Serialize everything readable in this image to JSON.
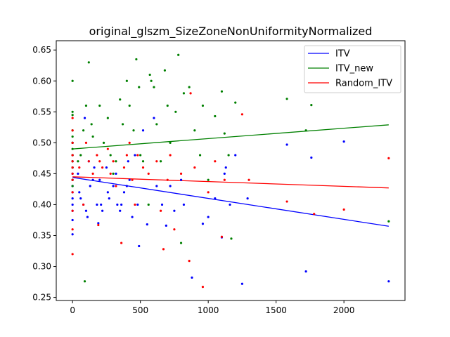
{
  "chart_data": {
    "type": "scatter",
    "title": "original_glszm_SizeZoneNonUniformityNormalized",
    "xlabel": "",
    "ylabel": "",
    "xlim": [
      -120,
      2450
    ],
    "ylim": [
      0.245,
      0.665
    ],
    "x_ticks": [
      0,
      500,
      1000,
      1500,
      2000
    ],
    "x_tick_labels": [
      "0",
      "500",
      "1000",
      "1500",
      "2000"
    ],
    "y_ticks": [
      0.25,
      0.3,
      0.35,
      0.4,
      0.45,
      0.5,
      0.55,
      0.6,
      0.65
    ],
    "y_tick_labels": [
      "0.25",
      "0.30",
      "0.35",
      "0.40",
      "0.45",
      "0.50",
      "0.55",
      "0.60",
      "0.65"
    ],
    "grid": false,
    "legend_position": "top-right",
    "series": [
      {
        "name": "ITV",
        "color": "#0000ff",
        "points": [
          [
            0,
            0.352
          ],
          [
            0,
            0.375
          ],
          [
            0,
            0.39
          ],
          [
            0,
            0.4
          ],
          [
            0,
            0.41
          ],
          [
            0,
            0.42
          ],
          [
            0,
            0.43
          ],
          [
            0,
            0.44
          ],
          [
            0,
            0.45
          ],
          [
            0,
            0.46
          ],
          [
            0,
            0.47
          ],
          [
            0,
            0.48
          ],
          [
            0,
            0.5
          ],
          [
            40,
            0.45
          ],
          [
            50,
            0.42
          ],
          [
            60,
            0.41
          ],
          [
            80,
            0.4
          ],
          [
            90,
            0.54
          ],
          [
            100,
            0.39
          ],
          [
            110,
            0.38
          ],
          [
            120,
            0.47
          ],
          [
            130,
            0.43
          ],
          [
            150,
            0.44
          ],
          [
            160,
            0.46
          ],
          [
            180,
            0.4
          ],
          [
            190,
            0.37
          ],
          [
            200,
            0.44
          ],
          [
            210,
            0.4
          ],
          [
            220,
            0.39
          ],
          [
            250,
            0.46
          ],
          [
            260,
            0.42
          ],
          [
            270,
            0.41
          ],
          [
            300,
            0.43
          ],
          [
            320,
            0.45
          ],
          [
            330,
            0.4
          ],
          [
            350,
            0.39
          ],
          [
            360,
            0.4
          ],
          [
            380,
            0.42
          ],
          [
            400,
            0.43
          ],
          [
            410,
            0.47
          ],
          [
            420,
            0.44
          ],
          [
            440,
            0.38
          ],
          [
            460,
            0.48
          ],
          [
            480,
            0.4
          ],
          [
            490,
            0.333
          ],
          [
            520,
            0.52
          ],
          [
            550,
            0.368
          ],
          [
            600,
            0.54
          ],
          [
            620,
            0.43
          ],
          [
            660,
            0.4
          ],
          [
            690,
            0.366
          ],
          [
            720,
            0.43
          ],
          [
            750,
            0.39
          ],
          [
            800,
            0.44
          ],
          [
            820,
            0.4
          ],
          [
            880,
            0.282
          ],
          [
            960,
            0.369
          ],
          [
            1000,
            0.38
          ],
          [
            1050,
            0.41
          ],
          [
            1100,
            0.347
          ],
          [
            1120,
            0.45
          ],
          [
            1130,
            0.46
          ],
          [
            1160,
            0.4
          ],
          [
            1200,
            0.48
          ],
          [
            1250,
            0.272
          ],
          [
            1290,
            0.41
          ],
          [
            1580,
            0.497
          ],
          [
            1720,
            0.292
          ],
          [
            1760,
            0.476
          ],
          [
            2000,
            0.502
          ],
          [
            2330,
            0.276
          ]
        ],
        "trend": {
          "x": [
            0,
            2330
          ],
          "y": [
            0.444,
            0.365
          ]
        }
      },
      {
        "name": "ITV_new",
        "color": "#008000",
        "points": [
          [
            0,
            0.6
          ],
          [
            0,
            0.55
          ],
          [
            0,
            0.545
          ],
          [
            0,
            0.52
          ],
          [
            0,
            0.51
          ],
          [
            0,
            0.5
          ],
          [
            0,
            0.49
          ],
          [
            0,
            0.48
          ],
          [
            0,
            0.47
          ],
          [
            0,
            0.46
          ],
          [
            0,
            0.44
          ],
          [
            0,
            0.43
          ],
          [
            40,
            0.47
          ],
          [
            60,
            0.48
          ],
          [
            80,
            0.52
          ],
          [
            90,
            0.276
          ],
          [
            100,
            0.56
          ],
          [
            120,
            0.63
          ],
          [
            140,
            0.53
          ],
          [
            150,
            0.51
          ],
          [
            200,
            0.56
          ],
          [
            230,
            0.5
          ],
          [
            260,
            0.54
          ],
          [
            280,
            0.48
          ],
          [
            300,
            0.45
          ],
          [
            320,
            0.47
          ],
          [
            350,
            0.57
          ],
          [
            370,
            0.53
          ],
          [
            400,
            0.6
          ],
          [
            420,
            0.56
          ],
          [
            450,
            0.52
          ],
          [
            470,
            0.635
          ],
          [
            490,
            0.59
          ],
          [
            500,
            0.48
          ],
          [
            520,
            0.47
          ],
          [
            560,
            0.4
          ],
          [
            570,
            0.61
          ],
          [
            580,
            0.6
          ],
          [
            600,
            0.59
          ],
          [
            620,
            0.53
          ],
          [
            650,
            0.47
          ],
          [
            680,
            0.617
          ],
          [
            700,
            0.56
          ],
          [
            720,
            0.5
          ],
          [
            760,
            0.55
          ],
          [
            780,
            0.642
          ],
          [
            800,
            0.338
          ],
          [
            820,
            0.58
          ],
          [
            860,
            0.59
          ],
          [
            900,
            0.52
          ],
          [
            940,
            0.48
          ],
          [
            960,
            0.56
          ],
          [
            1000,
            0.44
          ],
          [
            1050,
            0.543
          ],
          [
            1100,
            0.583
          ],
          [
            1120,
            0.515
          ],
          [
            1150,
            0.48
          ],
          [
            1170,
            0.345
          ],
          [
            1200,
            0.565
          ],
          [
            1580,
            0.571
          ],
          [
            1720,
            0.52
          ],
          [
            1760,
            0.561
          ],
          [
            2330,
            0.373
          ]
        ],
        "trend": {
          "x": [
            0,
            2330
          ],
          "y": [
            0.49,
            0.529
          ]
        }
      },
      {
        "name": "Random_ITV",
        "color": "#ff0000",
        "points": [
          [
            0,
            0.32
          ],
          [
            0,
            0.36
          ],
          [
            0,
            0.39
          ],
          [
            0,
            0.42
          ],
          [
            0,
            0.44
          ],
          [
            0,
            0.45
          ],
          [
            0,
            0.46
          ],
          [
            0,
            0.47
          ],
          [
            0,
            0.48
          ],
          [
            0,
            0.5
          ],
          [
            0,
            0.52
          ],
          [
            0,
            0.54
          ],
          [
            50,
            0.46
          ],
          [
            80,
            0.4
          ],
          [
            100,
            0.5
          ],
          [
            120,
            0.47
          ],
          [
            150,
            0.45
          ],
          [
            180,
            0.48
          ],
          [
            190,
            0.367
          ],
          [
            200,
            0.47
          ],
          [
            220,
            0.46
          ],
          [
            260,
            0.49
          ],
          [
            280,
            0.45
          ],
          [
            300,
            0.47
          ],
          [
            320,
            0.43
          ],
          [
            360,
            0.338
          ],
          [
            380,
            0.46
          ],
          [
            400,
            0.48
          ],
          [
            420,
            0.5
          ],
          [
            440,
            0.44
          ],
          [
            460,
            0.4
          ],
          [
            480,
            0.48
          ],
          [
            520,
            0.46
          ],
          [
            560,
            0.45
          ],
          [
            620,
            0.47
          ],
          [
            650,
            0.39
          ],
          [
            670,
            0.328
          ],
          [
            700,
            0.44
          ],
          [
            720,
            0.48
          ],
          [
            750,
            0.36
          ],
          [
            800,
            0.45
          ],
          [
            860,
            0.309
          ],
          [
            870,
            0.58
          ],
          [
            900,
            0.46
          ],
          [
            960,
            0.267
          ],
          [
            1000,
            0.42
          ],
          [
            1050,
            0.47
          ],
          [
            1100,
            0.348
          ],
          [
            1120,
            0.44
          ],
          [
            1250,
            0.546
          ],
          [
            1300,
            0.44
          ],
          [
            1580,
            0.405
          ],
          [
            1780,
            0.385
          ],
          [
            2000,
            0.392
          ],
          [
            2330,
            0.475
          ]
        ],
        "trend": {
          "x": [
            0,
            2330
          ],
          "y": [
            0.445,
            0.427
          ]
        }
      }
    ]
  }
}
